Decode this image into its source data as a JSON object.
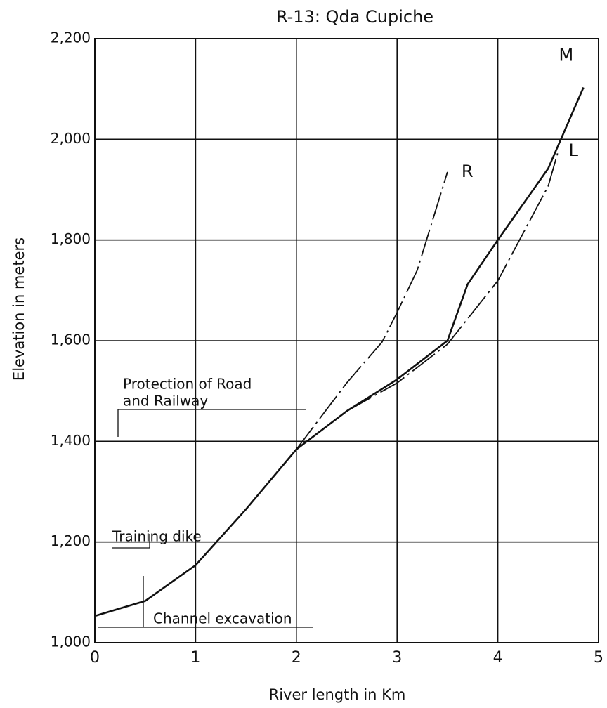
{
  "chart_data": {
    "type": "line",
    "title": "R-13: Qda Cupiche",
    "x_label": "River length in Km",
    "y_label": "Elevation in meters",
    "xlim": [
      0,
      5
    ],
    "ylim": [
      1000,
      2200
    ],
    "xticks": [
      0,
      1,
      2,
      3,
      4,
      5
    ],
    "yticks": [
      {
        "value": 1000,
        "label": "1,000"
      },
      {
        "value": 1200,
        "label": "1,200"
      },
      {
        "value": 1400,
        "label": "1,400"
      },
      {
        "value": 1600,
        "label": "1,600"
      },
      {
        "value": 1800,
        "label": "1,800"
      },
      {
        "value": 2000,
        "label": "2,000"
      },
      {
        "value": 2200,
        "label": "2,200"
      }
    ],
    "grid": true,
    "series": [
      {
        "name": "M",
        "color": "#111111",
        "x": [
          0,
          0.5,
          1,
          1.5,
          2,
          2.5,
          3,
          3.5,
          3.7,
          4,
          4.5,
          4.85
        ],
        "values": [
          1053,
          1083,
          1154,
          1265,
          1384,
          1460,
          1523,
          1600,
          1712,
          1800,
          1942,
          2103
        ]
      },
      {
        "name": "R",
        "color": "#111111",
        "x": [
          2,
          2.5,
          2.85,
          3,
          3.2,
          3.5
        ],
        "values": [
          1384,
          1516,
          1597,
          1656,
          1740,
          1935
        ]
      },
      {
        "name": "L",
        "color": "#111111",
        "x": [
          2.5,
          3,
          3.5,
          4,
          4.5,
          4.6
        ],
        "values": [
          1460,
          1516,
          1593,
          1719,
          1907,
          1977
        ]
      }
    ],
    "annotations": [
      "Protection of Road",
      "and Railway",
      "Training dike",
      "Channel excavation"
    ]
  }
}
